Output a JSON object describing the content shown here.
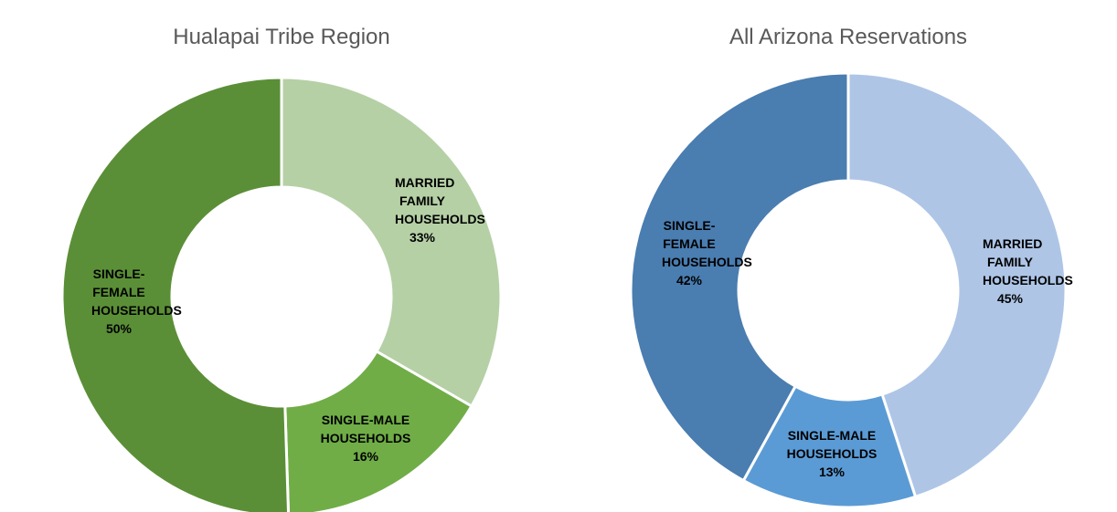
{
  "chart_data": [
    {
      "type": "donut",
      "title": "Hualapai Tribe Region",
      "categories": [
        "MARRIED FAMILY HOUSEHOLDS",
        "SINGLE-MALE HOUSEHOLDS",
        "SINGLE-FEMALE HOUSEHOLDS"
      ],
      "values": [
        33,
        16,
        50
      ],
      "value_labels": [
        "33%",
        "16%",
        "50%"
      ],
      "colors": [
        "#b5d0a5",
        "#70ad47",
        "#5b8f37"
      ]
    },
    {
      "type": "donut",
      "title": "All Arizona Reservations",
      "categories": [
        "MARRIED FAMILY HOUSEHOLDS",
        "SINGLE-MALE HOUSEHOLDS",
        "SINGLE-FEMALE HOUSEHOLDS"
      ],
      "values": [
        45,
        13,
        42
      ],
      "value_labels": [
        "45%",
        "13%",
        "42%"
      ],
      "colors": [
        "#aec5e6",
        "#5b9bd5",
        "#4a7db0"
      ]
    }
  ]
}
